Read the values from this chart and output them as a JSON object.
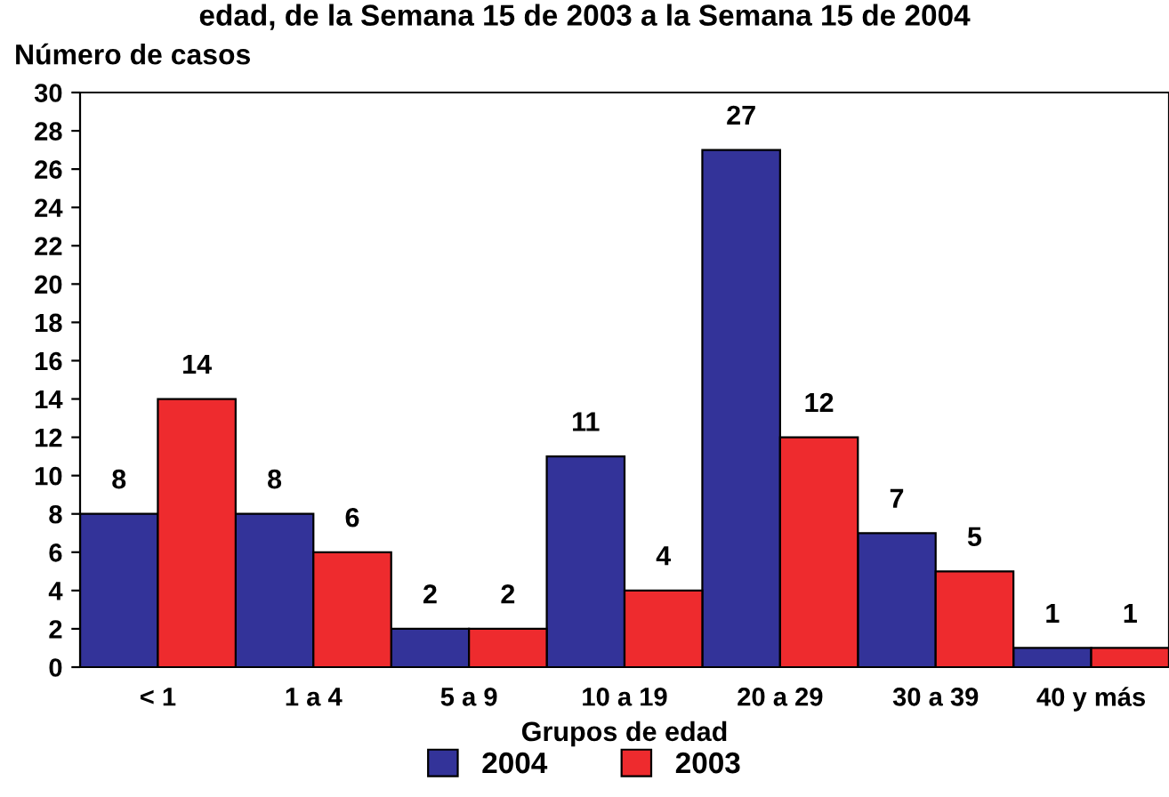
{
  "chart_data": {
    "type": "bar",
    "title": "edad, de la Semana 15 de 2003 a la Semana 15 de 2004",
    "ylabel": "Número de casos",
    "xlabel": "Grupos de edad",
    "categories": [
      "< 1",
      "1 a 4",
      "5 a 9",
      "10 a 19",
      "20 a 29",
      "30 a 39",
      "40 y más"
    ],
    "series": [
      {
        "name": "2004",
        "color": "#333399",
        "values": [
          8,
          8,
          2,
          11,
          27,
          7,
          1
        ]
      },
      {
        "name": "2003",
        "color": "#ee2b2e",
        "values": [
          14,
          6,
          2,
          4,
          12,
          5,
          1
        ]
      }
    ],
    "ylim": [
      0,
      30
    ],
    "yticks": [
      0,
      2,
      4,
      6,
      8,
      10,
      12,
      14,
      16,
      18,
      20,
      22,
      24,
      26,
      28,
      30
    ],
    "data_labels": true,
    "grid": false,
    "legend": "bottom"
  }
}
